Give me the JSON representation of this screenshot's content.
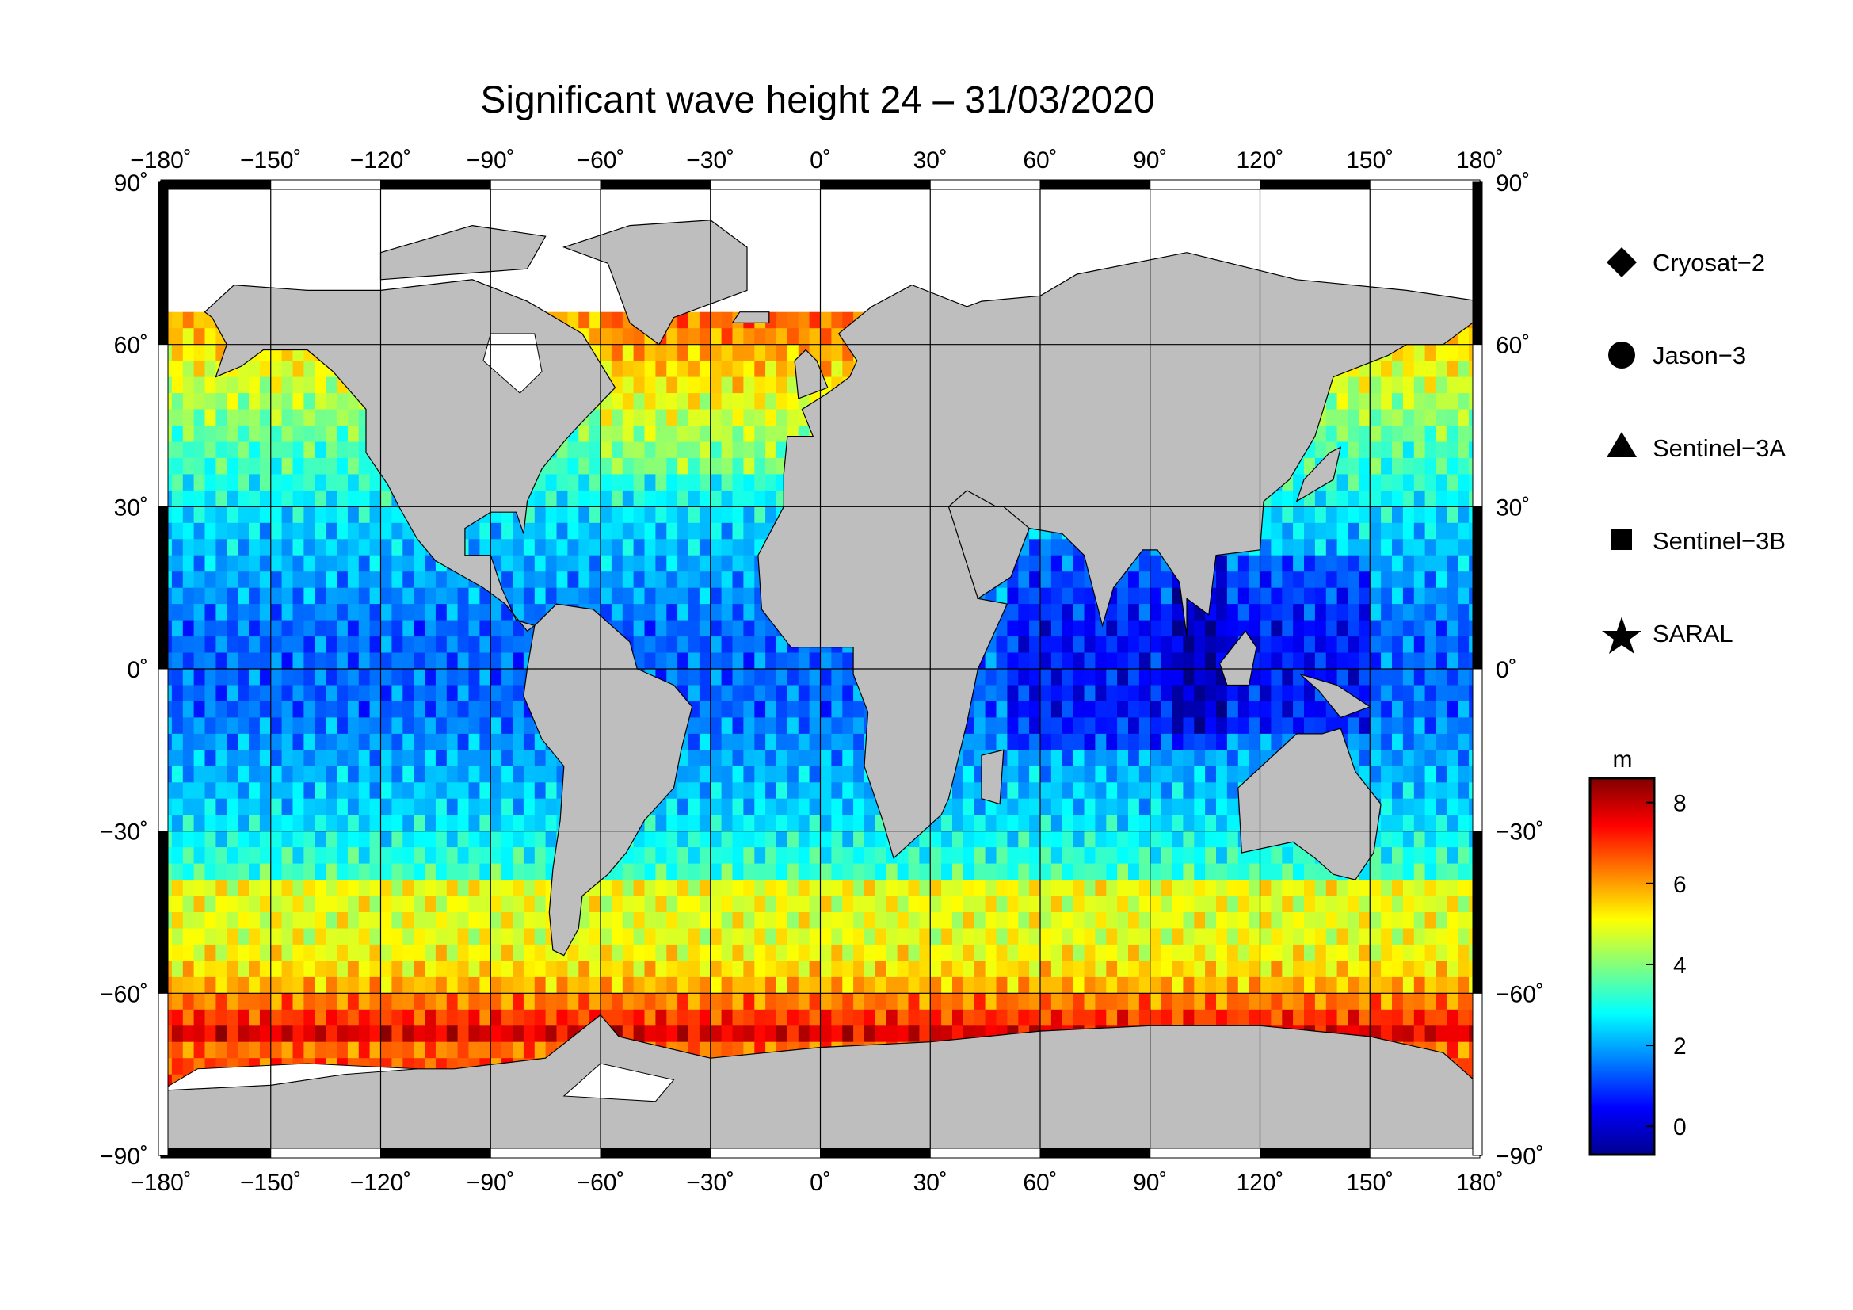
{
  "title": "Significant wave height 24 – 31/03/2020",
  "map": {
    "projection": "equirectangular",
    "lon_range": [
      -180,
      180
    ],
    "lat_range": [
      -90,
      90
    ],
    "grid": true,
    "land_color": "#bebebe",
    "ice_color": "#ffffff",
    "lon_ticks": [
      {
        "value": -180,
        "label": "−180˚"
      },
      {
        "value": -150,
        "label": "−150˚"
      },
      {
        "value": -120,
        "label": "−120˚"
      },
      {
        "value": -90,
        "label": "−90˚"
      },
      {
        "value": -60,
        "label": "−60˚"
      },
      {
        "value": -30,
        "label": "−30˚"
      },
      {
        "value": 0,
        "label": "0˚"
      },
      {
        "value": 30,
        "label": "30˚"
      },
      {
        "value": 60,
        "label": "60˚"
      },
      {
        "value": 90,
        "label": "90˚"
      },
      {
        "value": 120,
        "label": "120˚"
      },
      {
        "value": 150,
        "label": "150˚"
      },
      {
        "value": 180,
        "label": "180˚"
      }
    ],
    "lat_ticks": [
      {
        "value": 90,
        "label": "90˚"
      },
      {
        "value": 60,
        "label": "60˚"
      },
      {
        "value": 30,
        "label": "30˚"
      },
      {
        "value": 0,
        "label": "0˚"
      },
      {
        "value": -30,
        "label": "−30˚"
      },
      {
        "value": -60,
        "label": "−60˚"
      },
      {
        "value": -90,
        "label": "−90˚"
      }
    ]
  },
  "legend": {
    "items": [
      {
        "label": "Cryosat−2",
        "icon": "diamond"
      },
      {
        "label": "Jason−3",
        "icon": "circle"
      },
      {
        "label": "Sentinel−3A",
        "icon": "triangle"
      },
      {
        "label": "Sentinel−3B",
        "icon": "square"
      },
      {
        "label": "SARAL",
        "icon": "star"
      }
    ]
  },
  "colorbar": {
    "unit": "m",
    "min": -0.7,
    "max": 8.6,
    "ticks": [
      {
        "value": 0,
        "label": "0"
      },
      {
        "value": 2,
        "label": "2"
      },
      {
        "value": 4,
        "label": "4"
      },
      {
        "value": 6,
        "label": "6"
      },
      {
        "value": 8,
        "label": "8"
      }
    ],
    "colormap": "jet"
  }
}
